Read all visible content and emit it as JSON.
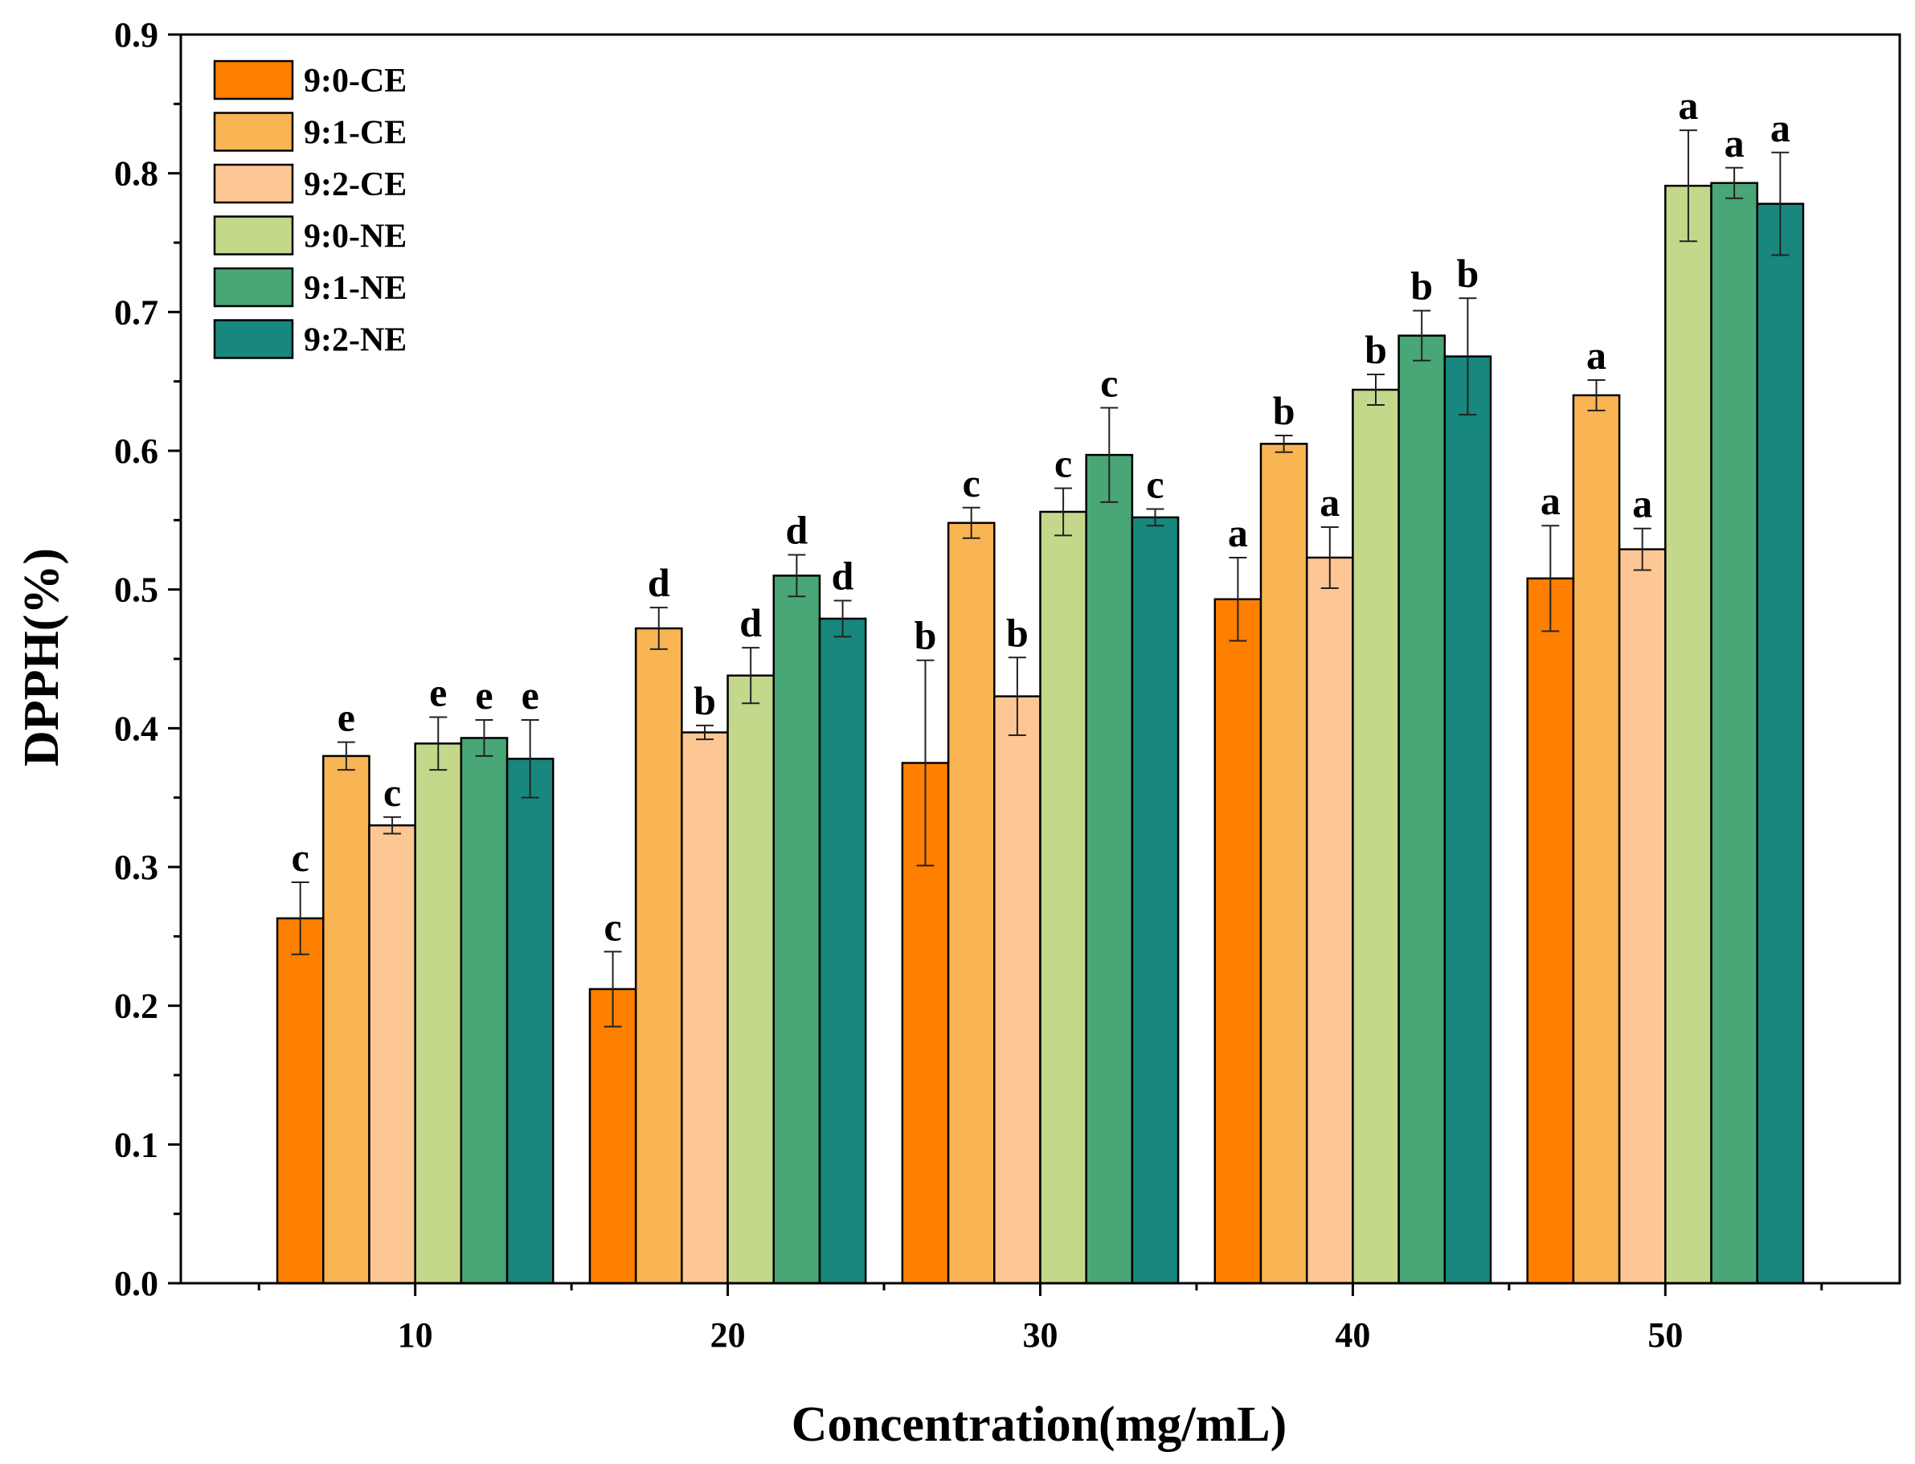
{
  "chart_data": {
    "type": "bar",
    "title": "",
    "xlabel": "Concentration(mg/mL)",
    "ylabel": "DPPH(%)",
    "ylim": [
      0,
      0.9
    ],
    "yticks": [
      "0.0",
      "0.1",
      "0.2",
      "0.3",
      "0.4",
      "0.5",
      "0.6",
      "0.7",
      "0.8",
      "0.9"
    ],
    "categories": [
      "10",
      "20",
      "30",
      "40",
      "50"
    ],
    "legend_position": "top-left",
    "series": [
      {
        "name": "9:0-CE",
        "color": "#FF7F00",
        "values": [
          0.263,
          0.212,
          0.375,
          0.493,
          0.508
        ],
        "errors": [
          0.026,
          0.027,
          0.074,
          0.03,
          0.038
        ],
        "labels": [
          "c",
          "c",
          "b",
          "a",
          "a"
        ]
      },
      {
        "name": "9:1-CE",
        "color": "#F9B454",
        "values": [
          0.38,
          0.472,
          0.548,
          0.605,
          0.64
        ],
        "errors": [
          0.01,
          0.015,
          0.011,
          0.006,
          0.011
        ],
        "labels": [
          "e",
          "d",
          "c",
          "b",
          "a"
        ]
      },
      {
        "name": "9:2-CE",
        "color": "#FDC795",
        "values": [
          0.33,
          0.397,
          0.423,
          0.523,
          0.529
        ],
        "errors": [
          0.006,
          0.005,
          0.028,
          0.022,
          0.015
        ],
        "labels": [
          "c",
          "b",
          "b",
          "a",
          "a"
        ]
      },
      {
        "name": "9:0-NE",
        "color": "#C4D88C",
        "values": [
          0.389,
          0.438,
          0.556,
          0.644,
          0.791
        ],
        "errors": [
          0.019,
          0.02,
          0.017,
          0.011,
          0.04
        ],
        "labels": [
          "e",
          "d",
          "c",
          "b",
          "a"
        ]
      },
      {
        "name": "9:1-NE",
        "color": "#49A676",
        "values": [
          0.393,
          0.51,
          0.597,
          0.683,
          0.793
        ],
        "errors": [
          0.013,
          0.015,
          0.034,
          0.018,
          0.011
        ],
        "labels": [
          "e",
          "d",
          "c",
          "b",
          "a"
        ]
      },
      {
        "name": "9:2-NE",
        "color": "#18877D",
        "values": [
          0.378,
          0.479,
          0.552,
          0.668,
          0.778
        ],
        "errors": [
          0.028,
          0.013,
          0.006,
          0.042,
          0.037
        ],
        "labels": [
          "e",
          "d",
          "c",
          "b",
          "a"
        ]
      }
    ]
  }
}
